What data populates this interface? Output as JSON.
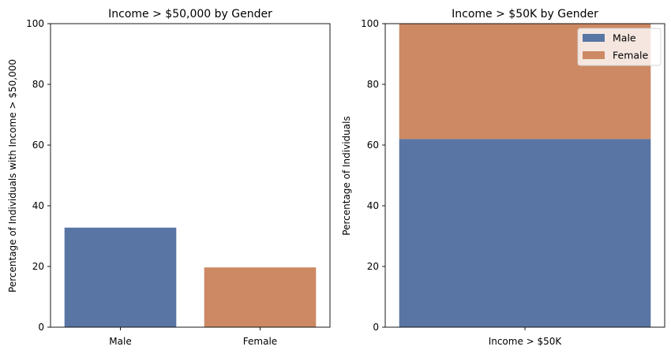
{
  "chart_data": [
    {
      "type": "bar",
      "title": "Income > $50,000 by Gender",
      "xlabel": "",
      "ylabel": "Percentage of Individuals with Income > $50,000",
      "categories": [
        "Male",
        "Female"
      ],
      "values": [
        32.8,
        19.7
      ],
      "colors": [
        "#5975a4",
        "#cc8963"
      ],
      "ylim": [
        0,
        100
      ],
      "yticks": [
        "0",
        "20",
        "40",
        "60",
        "80",
        "100"
      ],
      "grid": false
    },
    {
      "type": "bar",
      "stacked": true,
      "title": "Income > $50K by Gender",
      "xlabel": "",
      "ylabel": "Percentage of Individuals",
      "categories": [
        "Income > $50K"
      ],
      "series": [
        {
          "name": "Male",
          "values": [
            62
          ],
          "color": "#5975a4"
        },
        {
          "name": "Female",
          "values": [
            38
          ],
          "color": "#cc8963"
        }
      ],
      "ylim": [
        0,
        100
      ],
      "yticks": [
        "0",
        "20",
        "40",
        "60",
        "80",
        "100"
      ],
      "legend": "top-right",
      "grid": false
    }
  ]
}
